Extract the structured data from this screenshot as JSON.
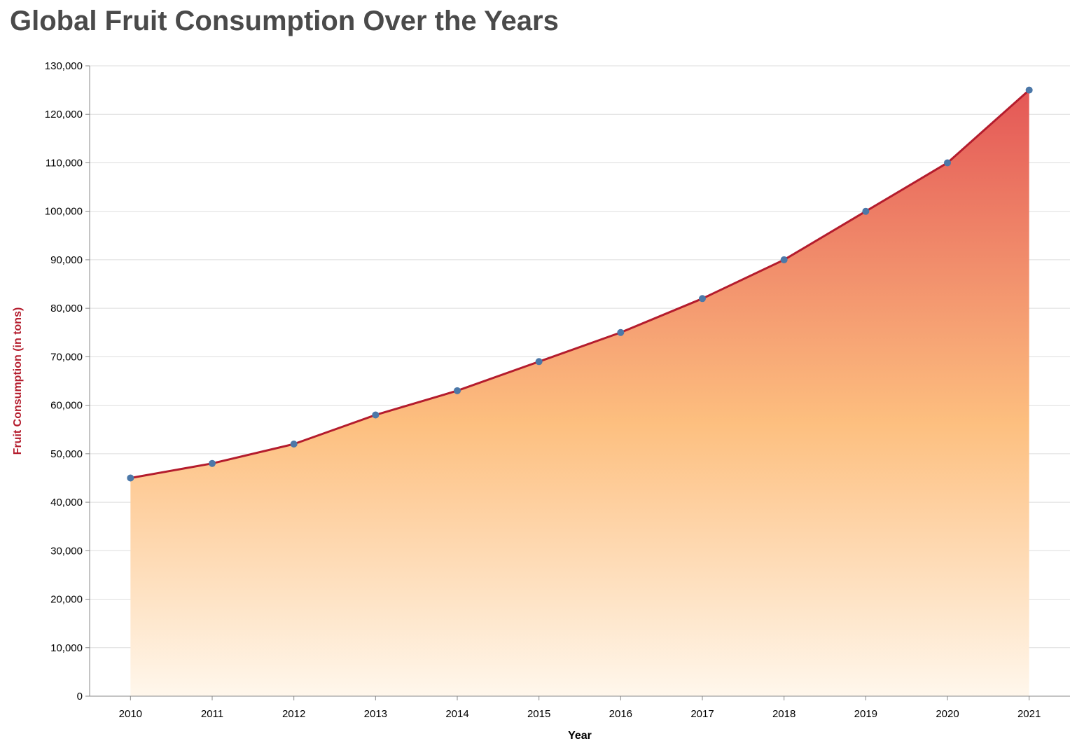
{
  "chart_data": {
    "type": "area",
    "title": "Global Fruit Consumption Over the Years",
    "xlabel": "Year",
    "ylabel": "Fruit Consumption (in tons)",
    "x": [
      "2010",
      "2011",
      "2012",
      "2013",
      "2014",
      "2015",
      "2016",
      "2017",
      "2018",
      "2019",
      "2020",
      "2021"
    ],
    "series": [
      {
        "values": [
          45000,
          48000,
          52000,
          58000,
          63000,
          69000,
          75000,
          82000,
          90000,
          100000,
          110000,
          125000
        ]
      }
    ],
    "ylim": [
      0,
      130000
    ],
    "yticks": [
      "0",
      "10,000",
      "20,000",
      "30,000",
      "40,000",
      "50,000",
      "60,000",
      "70,000",
      "80,000",
      "90,000",
      "100,000",
      "110,000",
      "120,000",
      "130,000"
    ],
    "grid": true,
    "colors": {
      "line": "#b41c2d",
      "point": "#4c78a8",
      "ylabel": "#b41c2d",
      "gradient_top": "#e45756",
      "gradient_mid": "#fdbf7f",
      "gradient_bottom": "#fff7ec"
    }
  }
}
